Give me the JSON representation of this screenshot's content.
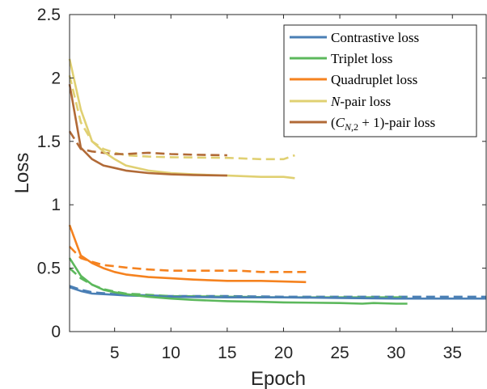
{
  "chart_data": {
    "type": "line",
    "title": "",
    "xlabel": "Epoch",
    "ylabel": "Loss",
    "xlim": [
      1,
      38
    ],
    "ylim": [
      0,
      2.5
    ],
    "xticks": [
      5,
      10,
      15,
      20,
      25,
      30,
      35
    ],
    "yticks": [
      0,
      0.5,
      1,
      1.5,
      2,
      2.5
    ],
    "xtick_labels": [
      "5",
      "10",
      "15",
      "20",
      "25",
      "30",
      "35"
    ],
    "ytick_labels": [
      "0",
      "0.5",
      "1",
      "1.5",
      "2",
      "2.5"
    ],
    "grid": false,
    "box": true,
    "legend_position": "top-right",
    "line_styles": [
      "solid (training)",
      "dashed (validation)"
    ],
    "series": [
      {
        "name": "Contrastive loss",
        "color": "#4a7fb5",
        "solid": [
          [
            1,
            0.35
          ],
          [
            2,
            0.32
          ],
          [
            3,
            0.3
          ],
          [
            4,
            0.295
          ],
          [
            5,
            0.29
          ],
          [
            6,
            0.285
          ],
          [
            8,
            0.28
          ],
          [
            10,
            0.275
          ],
          [
            15,
            0.27
          ],
          [
            20,
            0.27
          ],
          [
            25,
            0.265
          ],
          [
            30,
            0.26
          ],
          [
            35,
            0.26
          ],
          [
            38,
            0.26
          ]
        ],
        "dashed": [
          [
            1,
            0.36
          ],
          [
            2,
            0.33
          ],
          [
            3,
            0.31
          ],
          [
            5,
            0.295
          ],
          [
            8,
            0.285
          ],
          [
            10,
            0.28
          ],
          [
            15,
            0.28
          ],
          [
            20,
            0.275
          ],
          [
            25,
            0.275
          ],
          [
            30,
            0.275
          ],
          [
            35,
            0.275
          ],
          [
            38,
            0.275
          ]
        ]
      },
      {
        "name": "Triplet loss",
        "color": "#5cb85c",
        "solid": [
          [
            1,
            0.58
          ],
          [
            2,
            0.44
          ],
          [
            3,
            0.37
          ],
          [
            4,
            0.33
          ],
          [
            5,
            0.31
          ],
          [
            6,
            0.295
          ],
          [
            8,
            0.275
          ],
          [
            10,
            0.26
          ],
          [
            12,
            0.25
          ],
          [
            15,
            0.24
          ],
          [
            18,
            0.235
          ],
          [
            20,
            0.23
          ],
          [
            25,
            0.225
          ],
          [
            27,
            0.22
          ],
          [
            28,
            0.225
          ],
          [
            30,
            0.22
          ],
          [
            31,
            0.22
          ]
        ],
        "dashed": [
          [
            1,
            0.5
          ],
          [
            2,
            0.42
          ],
          [
            3,
            0.37
          ],
          [
            4,
            0.335
          ],
          [
            5,
            0.315
          ],
          [
            6,
            0.3
          ],
          [
            8,
            0.29
          ],
          [
            10,
            0.28
          ],
          [
            15,
            0.275
          ],
          [
            20,
            0.27
          ],
          [
            25,
            0.27
          ],
          [
            30,
            0.27
          ],
          [
            31,
            0.27
          ]
        ]
      },
      {
        "name": "Quadruplet loss",
        "color": "#f5821f",
        "solid": [
          [
            1,
            0.84
          ],
          [
            2,
            0.6
          ],
          [
            3,
            0.54
          ],
          [
            4,
            0.5
          ],
          [
            5,
            0.47
          ],
          [
            6,
            0.45
          ],
          [
            8,
            0.43
          ],
          [
            10,
            0.42
          ],
          [
            12,
            0.41
          ],
          [
            15,
            0.4
          ],
          [
            18,
            0.4
          ],
          [
            20,
            0.395
          ],
          [
            22,
            0.39
          ]
        ],
        "dashed": [
          [
            1,
            0.67
          ],
          [
            2,
            0.58
          ],
          [
            3,
            0.55
          ],
          [
            4,
            0.525
          ],
          [
            5,
            0.515
          ],
          [
            6,
            0.505
          ],
          [
            8,
            0.49
          ],
          [
            10,
            0.48
          ],
          [
            12,
            0.48
          ],
          [
            15,
            0.48
          ],
          [
            16,
            0.48
          ],
          [
            18,
            0.47
          ],
          [
            20,
            0.47
          ],
          [
            22,
            0.47
          ]
        ]
      },
      {
        "name": "N-pair loss",
        "color": "#e0d072",
        "solid": [
          [
            1,
            2.15
          ],
          [
            2,
            1.75
          ],
          [
            3,
            1.5
          ],
          [
            4,
            1.42
          ],
          [
            5,
            1.36
          ],
          [
            6,
            1.31
          ],
          [
            8,
            1.27
          ],
          [
            10,
            1.25
          ],
          [
            12,
            1.24
          ],
          [
            15,
            1.23
          ],
          [
            18,
            1.22
          ],
          [
            20,
            1.22
          ],
          [
            21,
            1.21
          ]
        ],
        "dashed": [
          [
            1,
            2.02
          ],
          [
            2,
            1.65
          ],
          [
            3,
            1.5
          ],
          [
            4,
            1.44
          ],
          [
            5,
            1.41
          ],
          [
            6,
            1.39
          ],
          [
            8,
            1.38
          ],
          [
            10,
            1.375
          ],
          [
            15,
            1.37
          ],
          [
            18,
            1.36
          ],
          [
            20,
            1.36
          ],
          [
            21,
            1.39
          ]
        ]
      },
      {
        "name": "(C_{N,2}+1)-pair loss",
        "color": "#b16a37",
        "solid": [
          [
            1,
            1.95
          ],
          [
            2,
            1.45
          ],
          [
            3,
            1.36
          ],
          [
            4,
            1.31
          ],
          [
            5,
            1.29
          ],
          [
            6,
            1.27
          ],
          [
            8,
            1.25
          ],
          [
            10,
            1.24
          ],
          [
            12,
            1.235
          ],
          [
            15,
            1.23
          ]
        ],
        "dashed": [
          [
            1,
            1.58
          ],
          [
            2,
            1.44
          ],
          [
            3,
            1.42
          ],
          [
            4,
            1.41
          ],
          [
            5,
            1.4
          ],
          [
            6,
            1.4
          ],
          [
            8,
            1.41
          ],
          [
            10,
            1.4
          ],
          [
            12,
            1.395
          ],
          [
            15,
            1.39
          ]
        ]
      }
    ]
  }
}
